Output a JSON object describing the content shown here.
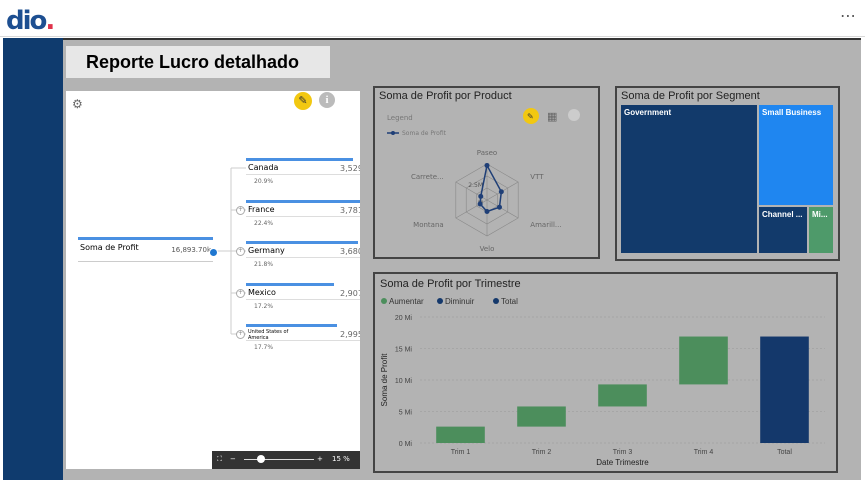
{
  "app": {
    "logo_text": "dio",
    "logo_dot": "."
  },
  "page_title": "Reporte Lucro detalhado",
  "decomp_tree": {
    "root": {
      "label": "Soma de Profit",
      "value": "16,893.70k"
    },
    "children": [
      {
        "label": "Canada",
        "value": "3,529",
        "pct": "20.9%",
        "share": 0.209
      },
      {
        "label": "France",
        "value": "3,781",
        "pct": "22.4%",
        "share": 0.224
      },
      {
        "label": "Germany",
        "value": "3,680",
        "pct": "21.8%",
        "share": 0.218
      },
      {
        "label": "Mexico",
        "value": "2,907",
        "pct": "17.2%",
        "share": 0.172
      },
      {
        "label": "United States of America",
        "value": "2,995",
        "pct": "17.7%",
        "share": 0.177
      }
    ],
    "zoom": "15 %"
  },
  "radar": {
    "title": "Soma de Profit por Product",
    "legend_title": "Legend",
    "legend_item": "Soma de Profit",
    "axes": [
      "Paseo",
      "VTT",
      "Amarill...",
      "Velo",
      "Montana",
      "Carrete..."
    ],
    "values": [
      4.8,
      2.3,
      2.0,
      1.6,
      1.1,
      1.0
    ],
    "ring_labels": [
      "2.5M",
      "M"
    ],
    "series_color": "#1f3f77"
  },
  "treemap": {
    "title": "Soma de Profit por Segment",
    "segments": [
      {
        "label": "Government",
        "color": "#123a6b"
      },
      {
        "label": "Small Business",
        "color": "#1f86f0"
      },
      {
        "label": "Channel ...",
        "color": "#123a6b"
      },
      {
        "label": "Mi...",
        "color": "#4e9a6a"
      }
    ]
  },
  "chart_data": {
    "type": "bar",
    "title": "Soma de Profit por Trimestre",
    "xlabel": "Date Trimestre",
    "ylabel": "Soma de Profit",
    "legend": [
      "Aumentar",
      "Diminuir",
      "Total"
    ],
    "legend_colors": [
      "#4c8e5c",
      "#14386b",
      "#14386b"
    ],
    "categories": [
      "Trim 1",
      "Trim 2",
      "Trim 3",
      "Trim 4",
      "Total"
    ],
    "waterfall": [
      {
        "start": 0,
        "end": 2.6,
        "kind": "Aumentar"
      },
      {
        "start": 2.6,
        "end": 5.8,
        "kind": "Aumentar"
      },
      {
        "start": 5.8,
        "end": 9.3,
        "kind": "Aumentar"
      },
      {
        "start": 9.3,
        "end": 16.9,
        "kind": "Aumentar"
      },
      {
        "start": 0,
        "end": 16.9,
        "kind": "Total"
      }
    ],
    "yticks": [
      "0 Mi",
      "5 Mi",
      "10 Mi",
      "15 Mi",
      "20 Mi"
    ],
    "ylim": [
      0,
      20
    ],
    "grid": true,
    "legend_position": "top-left"
  }
}
